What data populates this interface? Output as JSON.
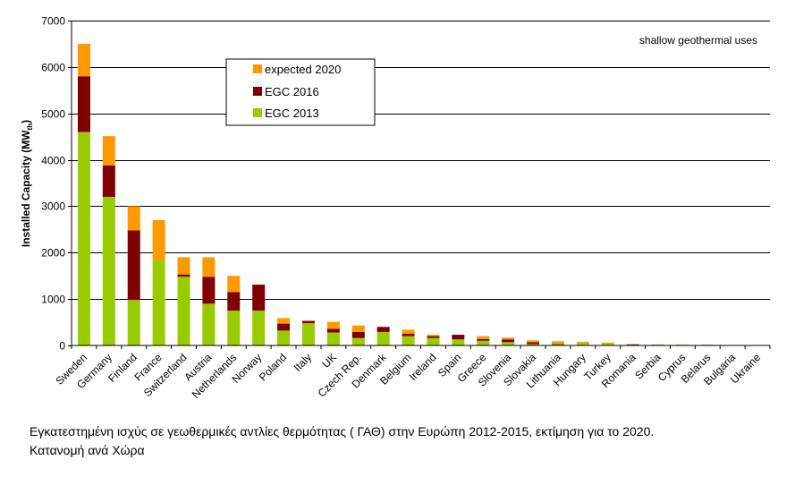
{
  "caption": {
    "line1": "Εγκατεστημένη ισχύς σε γεωθερμικές αντλίες θερμότητας   ( ΓΑΘ)    στην Ευρώπη 2012-2015, εκτίμηση  για το 2020.",
    "line2": "Κατανομή ανά Χώρα"
  },
  "chart_data": {
    "type": "bar",
    "stacked": true,
    "annotation": "shallow geothermal uses",
    "ylabel": "Installed Capacity (MW",
    "ylabel_sub": "th",
    "ylabel_close": ")",
    "ylim": [
      0,
      7000
    ],
    "yticks": [
      0,
      1000,
      2000,
      3000,
      4000,
      5000,
      6000,
      7000
    ],
    "yticklabels": [
      "0",
      "1000",
      "2000",
      "3000",
      "4000",
      "5000",
      "6000",
      "7000"
    ],
    "grid": true,
    "legend_position": "top-left",
    "legend_order": [
      "expected 2020",
      "EGC 2016",
      "EGC 2013"
    ],
    "categories": [
      "Sweden",
      "Germany",
      "Finland",
      "France",
      "Switzerland",
      "Austria",
      "Netherlands",
      "Norway",
      "Poland",
      "Italy",
      "UK",
      "Czech Rep.",
      "Denmark",
      "Belgium",
      "Ireland",
      "Spain",
      "Greece",
      "Slovenia",
      "Slovakia",
      "Lithuania",
      "Hungary",
      "Turkey",
      "Romania",
      "Serbia",
      "Cyprus",
      "Belarus",
      "Bulgaria",
      "Ukraine"
    ],
    "series": [
      {
        "name": "EGC 2013",
        "color": "#99cc00",
        "values": [
          4600,
          3200,
          980,
          1850,
          1480,
          900,
          750,
          750,
          320,
          480,
          280,
          160,
          290,
          200,
          160,
          130,
          100,
          70,
          30,
          30,
          60,
          30,
          10,
          10,
          8,
          5,
          3,
          2
        ]
      },
      {
        "name": "EGC 2016",
        "color": "#800000",
        "values": [
          1200,
          680,
          1500,
          0,
          50,
          580,
          400,
          560,
          150,
          50,
          80,
          130,
          110,
          50,
          40,
          100,
          40,
          60,
          40,
          10,
          0,
          0,
          10,
          5,
          5,
          8,
          0,
          0
        ]
      },
      {
        "name": "expected 2020",
        "color": "#ff9900",
        "values": [
          700,
          630,
          520,
          850,
          370,
          420,
          350,
          0,
          120,
          0,
          150,
          140,
          0,
          90,
          30,
          0,
          60,
          40,
          40,
          50,
          20,
          30,
          10,
          5,
          5,
          0,
          0,
          0
        ]
      }
    ]
  }
}
